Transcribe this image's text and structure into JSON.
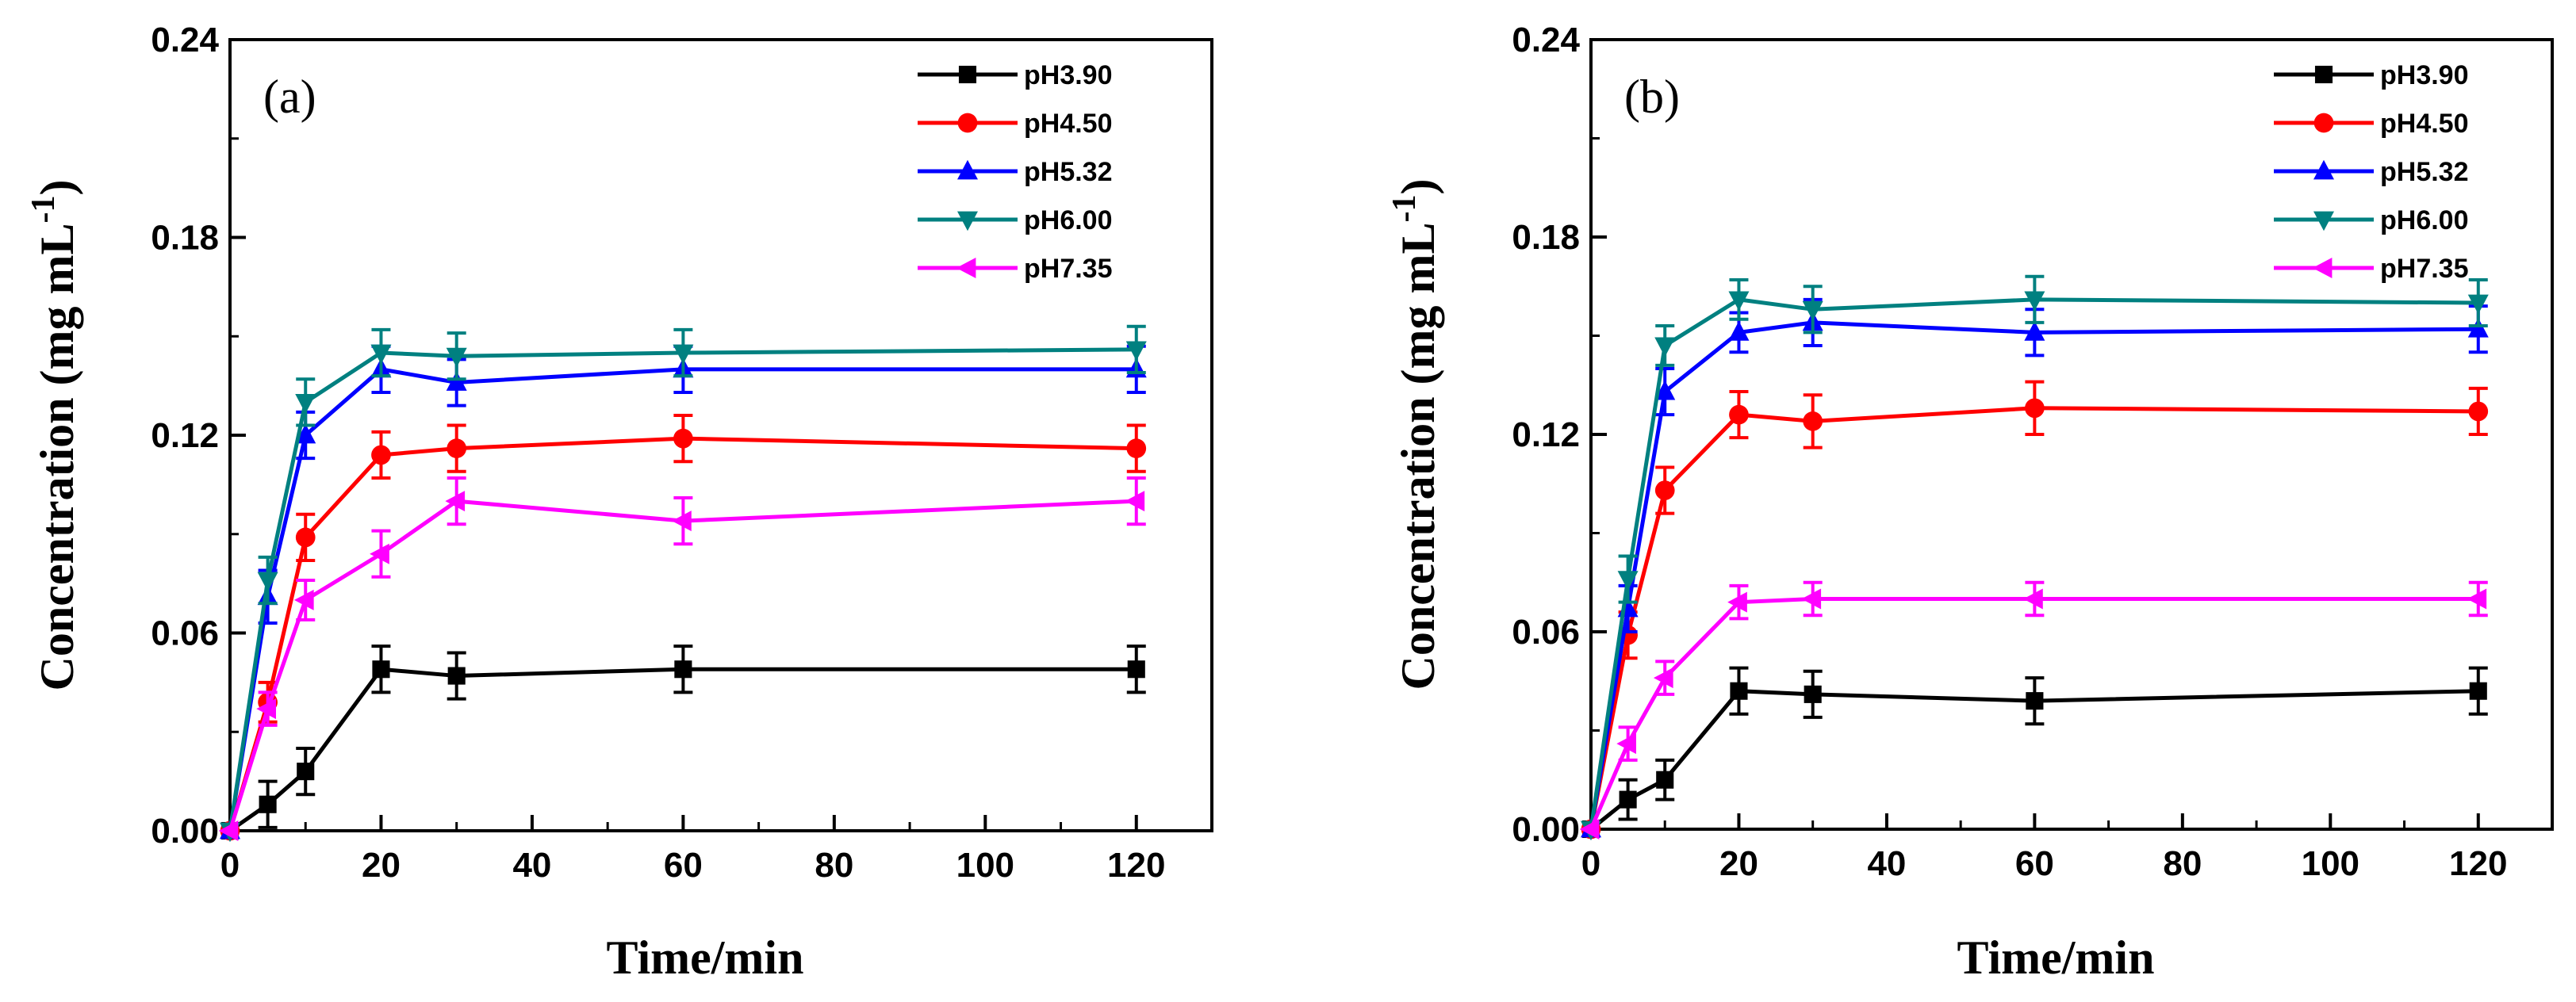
{
  "chart_data": [
    {
      "type": "line",
      "panel_label": "(a)",
      "xlabel": "Time/min",
      "ylabel": {
        "main": "Concentration (mg  mL",
        "superscript": "-1",
        "close": ")"
      },
      "xlim": [
        0,
        130
      ],
      "ylim": [
        0,
        0.24
      ],
      "xticks": [
        "0",
        "20",
        "40",
        "60",
        "80",
        "100",
        "120"
      ],
      "yticks": [
        "0.00",
        "0.06",
        "0.12",
        "0.18",
        "0.24"
      ],
      "legend_position": "top-right",
      "x": [
        0,
        5,
        10,
        20,
        30,
        60,
        120
      ],
      "series": [
        {
          "name": "pH3.90",
          "color": "#000000",
          "marker": "square",
          "values": [
            0,
            0.008,
            0.018,
            0.049,
            0.047,
            0.049,
            0.049
          ],
          "errors": [
            0,
            0.007,
            0.007,
            0.007,
            0.007,
            0.007,
            0.007
          ]
        },
        {
          "name": "pH4.50",
          "color": "#ff0000",
          "marker": "circle",
          "values": [
            0,
            0.039,
            0.089,
            0.114,
            0.116,
            0.119,
            0.116
          ],
          "errors": [
            0,
            0.006,
            0.007,
            0.007,
            0.007,
            0.007,
            0.007
          ]
        },
        {
          "name": "pH5.32",
          "color": "#0000ff",
          "marker": "triangle-up",
          "values": [
            0,
            0.071,
            0.12,
            0.14,
            0.136,
            0.14,
            0.14
          ],
          "errors": [
            0,
            0.008,
            0.007,
            0.007,
            0.007,
            0.007,
            0.007
          ]
        },
        {
          "name": "pH6.00",
          "color": "#008080",
          "marker": "triangle-down",
          "values": [
            0,
            0.076,
            0.13,
            0.145,
            0.144,
            0.145,
            0.146
          ],
          "errors": [
            0,
            0.007,
            0.007,
            0.007,
            0.007,
            0.007,
            0.007
          ]
        },
        {
          "name": "pH7.35",
          "color": "#ff00ff",
          "marker": "triangle-left",
          "values": [
            0,
            0.037,
            0.07,
            0.084,
            0.1,
            0.094,
            0.1
          ],
          "errors": [
            0,
            0.005,
            0.006,
            0.007,
            0.007,
            0.007,
            0.007
          ]
        }
      ]
    },
    {
      "type": "line",
      "panel_label": "(b)",
      "xlabel": "Time/min",
      "ylabel": {
        "main": "Concentration (mg  mL",
        "superscript": "-1",
        "close": ")"
      },
      "xlim": [
        0,
        130
      ],
      "ylim": [
        0,
        0.24
      ],
      "xticks": [
        "0",
        "20",
        "40",
        "60",
        "80",
        "100",
        "120"
      ],
      "yticks": [
        "0.00",
        "0.06",
        "0.12",
        "0.18",
        "0.24"
      ],
      "legend_position": "top-right",
      "x": [
        0,
        5,
        10,
        20,
        30,
        60,
        120
      ],
      "series": [
        {
          "name": "pH3.90",
          "color": "#000000",
          "marker": "square",
          "values": [
            0,
            0.009,
            0.015,
            0.042,
            0.041,
            0.039,
            0.042
          ],
          "errors": [
            0,
            0.006,
            0.006,
            0.007,
            0.007,
            0.007,
            0.007
          ]
        },
        {
          "name": "pH4.50",
          "color": "#ff0000",
          "marker": "circle",
          "values": [
            0,
            0.059,
            0.103,
            0.126,
            0.124,
            0.128,
            0.127
          ],
          "errors": [
            0,
            0.007,
            0.007,
            0.007,
            0.008,
            0.008,
            0.007
          ]
        },
        {
          "name": "pH5.32",
          "color": "#0000ff",
          "marker": "triangle-up",
          "values": [
            0,
            0.067,
            0.133,
            0.151,
            0.154,
            0.151,
            0.152
          ],
          "errors": [
            0,
            0.007,
            0.007,
            0.006,
            0.007,
            0.007,
            0.007
          ]
        },
        {
          "name": "pH6.00",
          "color": "#008080",
          "marker": "triangle-down",
          "values": [
            0,
            0.076,
            0.147,
            0.161,
            0.158,
            0.161,
            0.16
          ],
          "errors": [
            0,
            0.007,
            0.006,
            0.006,
            0.007,
            0.007,
            0.007
          ]
        },
        {
          "name": "pH7.35",
          "color": "#ff00ff",
          "marker": "triangle-left",
          "values": [
            0,
            0.026,
            0.046,
            0.069,
            0.07,
            0.07,
            0.07
          ],
          "errors": [
            0,
            0.005,
            0.005,
            0.005,
            0.005,
            0.005,
            0.005
          ]
        }
      ]
    }
  ]
}
